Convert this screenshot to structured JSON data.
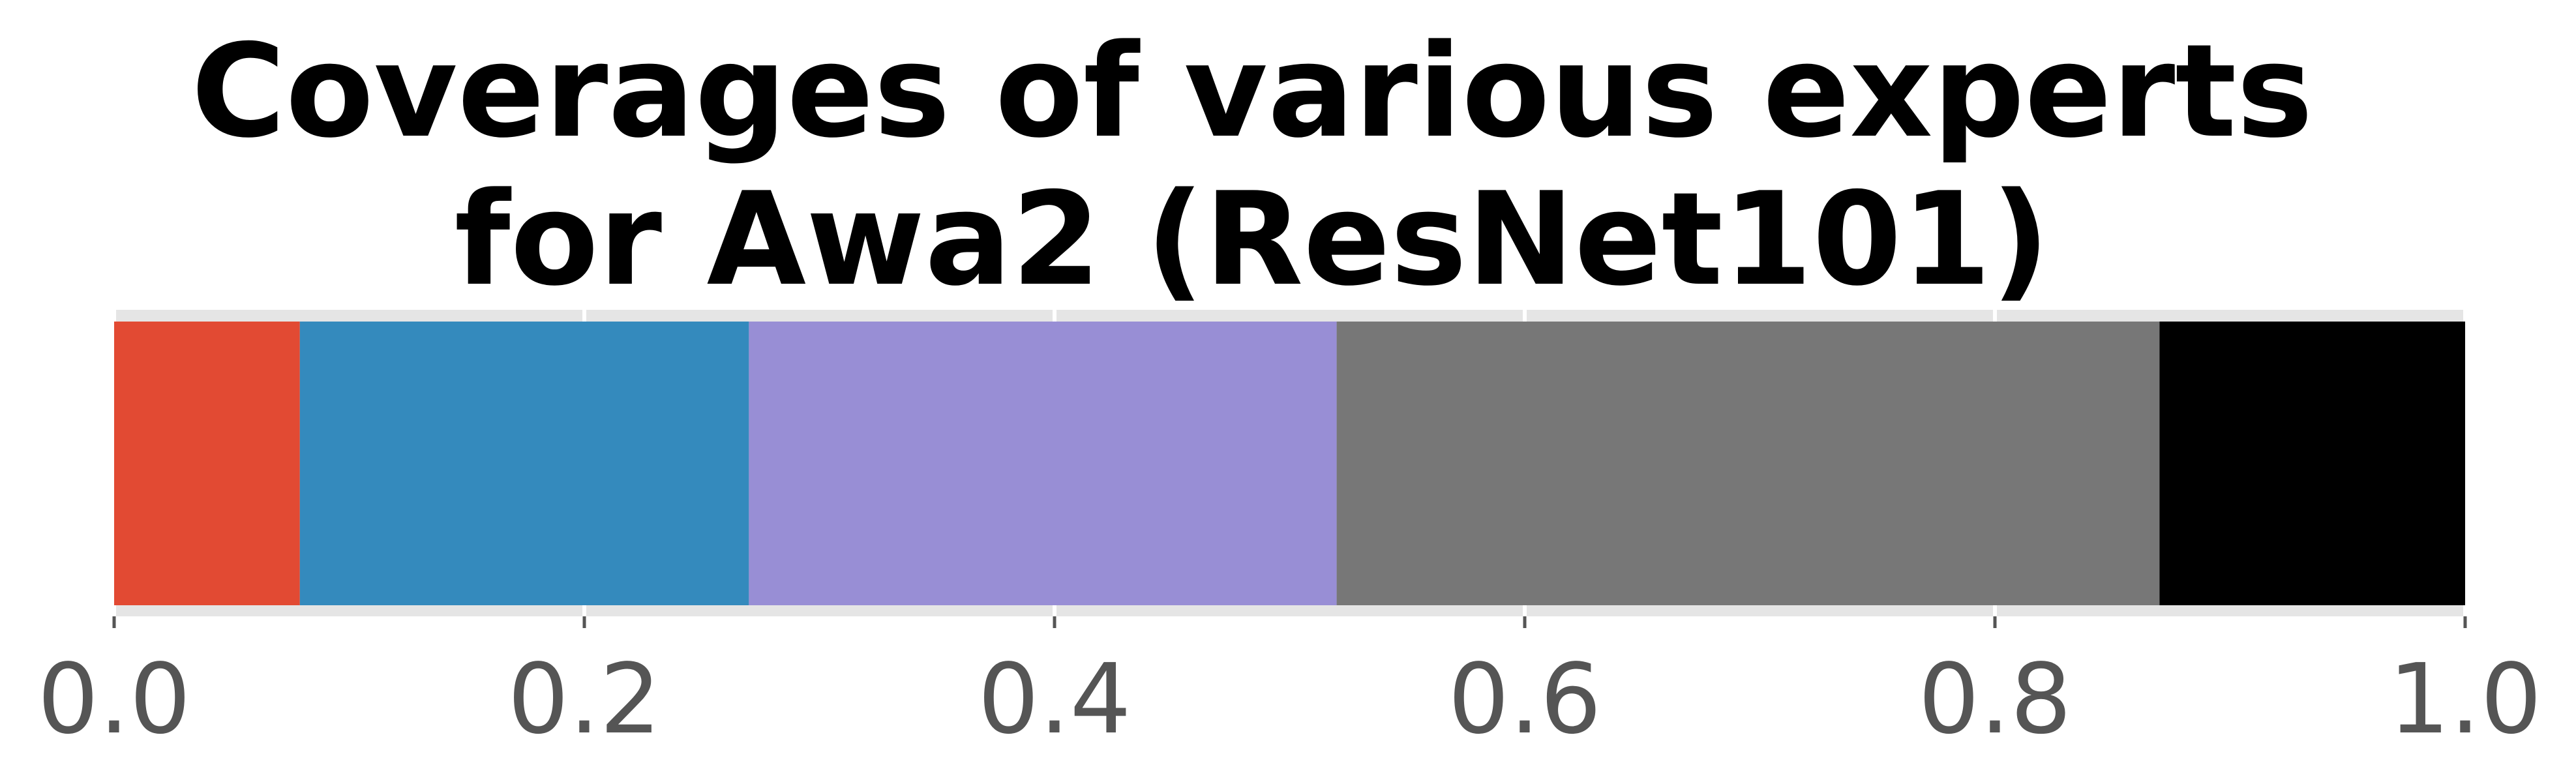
{
  "chart_data": {
    "type": "bar",
    "orientation": "horizontal-stacked",
    "title_lines": [
      "Coverages of various experts",
      "for Awa2 (ResNet101)"
    ],
    "xlim": [
      0,
      1
    ],
    "xticks": [
      0.0,
      0.2,
      0.4,
      0.6,
      0.8,
      1.0
    ],
    "xtick_labels": [
      "0.0",
      "0.2",
      "0.4",
      "0.6",
      "0.8",
      "1.0"
    ],
    "grid": true,
    "segments": [
      {
        "value": 0.079,
        "color": "#E24A33"
      },
      {
        "value": 0.191,
        "color": "#348ABD"
      },
      {
        "value": 0.25,
        "color": "#988ED5"
      },
      {
        "value": 0.35,
        "color": "#777777"
      },
      {
        "value": 0.13,
        "color": "#000000"
      }
    ]
  }
}
